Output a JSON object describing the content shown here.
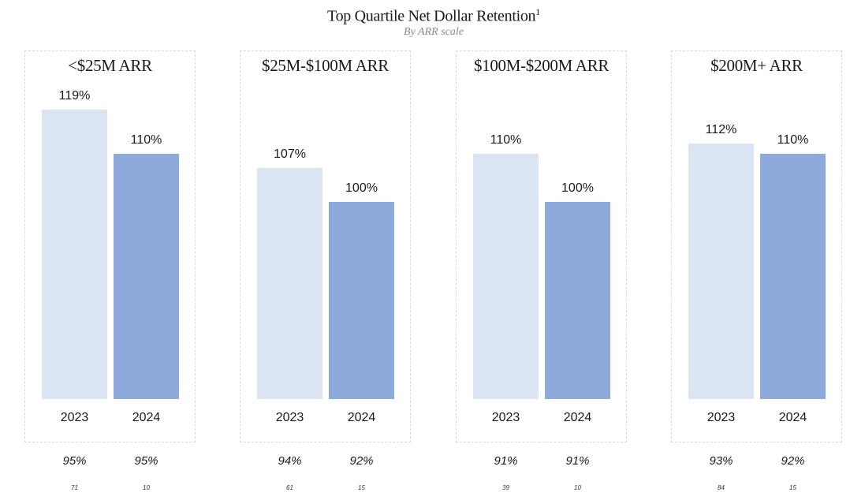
{
  "header": {
    "title": "Top Quartile Net Dollar Retention",
    "footnote_marker": "1",
    "subtitle": "By ARR scale"
  },
  "colors": {
    "bar_2023": "#dbe4f3",
    "bar_2024": "#8eaadc"
  },
  "chart_data": [
    {
      "type": "bar",
      "title": "<$25M ARR",
      "categories": [
        "2023",
        "2024"
      ],
      "values": [
        119,
        110
      ],
      "value_labels": [
        "119%",
        "110%"
      ],
      "secondary_values": [
        "95%",
        "95%"
      ],
      "counts": [
        "71",
        "10"
      ]
    },
    {
      "type": "bar",
      "title": "$25M-$100M ARR",
      "categories": [
        "2023",
        "2024"
      ],
      "values": [
        107,
        100
      ],
      "value_labels": [
        "107%",
        "100%"
      ],
      "secondary_values": [
        "94%",
        "92%"
      ],
      "counts": [
        "61",
        "15"
      ]
    },
    {
      "type": "bar",
      "title": "$100M-$200M ARR",
      "categories": [
        "2023",
        "2024"
      ],
      "values": [
        110,
        100
      ],
      "value_labels": [
        "110%",
        "100%"
      ],
      "secondary_values": [
        "91%",
        "91%"
      ],
      "counts": [
        "39",
        "10"
      ]
    },
    {
      "type": "bar",
      "title": "$200M+ ARR",
      "categories": [
        "2023",
        "2024"
      ],
      "values": [
        112,
        110
      ],
      "value_labels": [
        "112%",
        "110%"
      ],
      "secondary_values": [
        "93%",
        "92%"
      ],
      "counts": [
        "84",
        "15"
      ]
    }
  ]
}
